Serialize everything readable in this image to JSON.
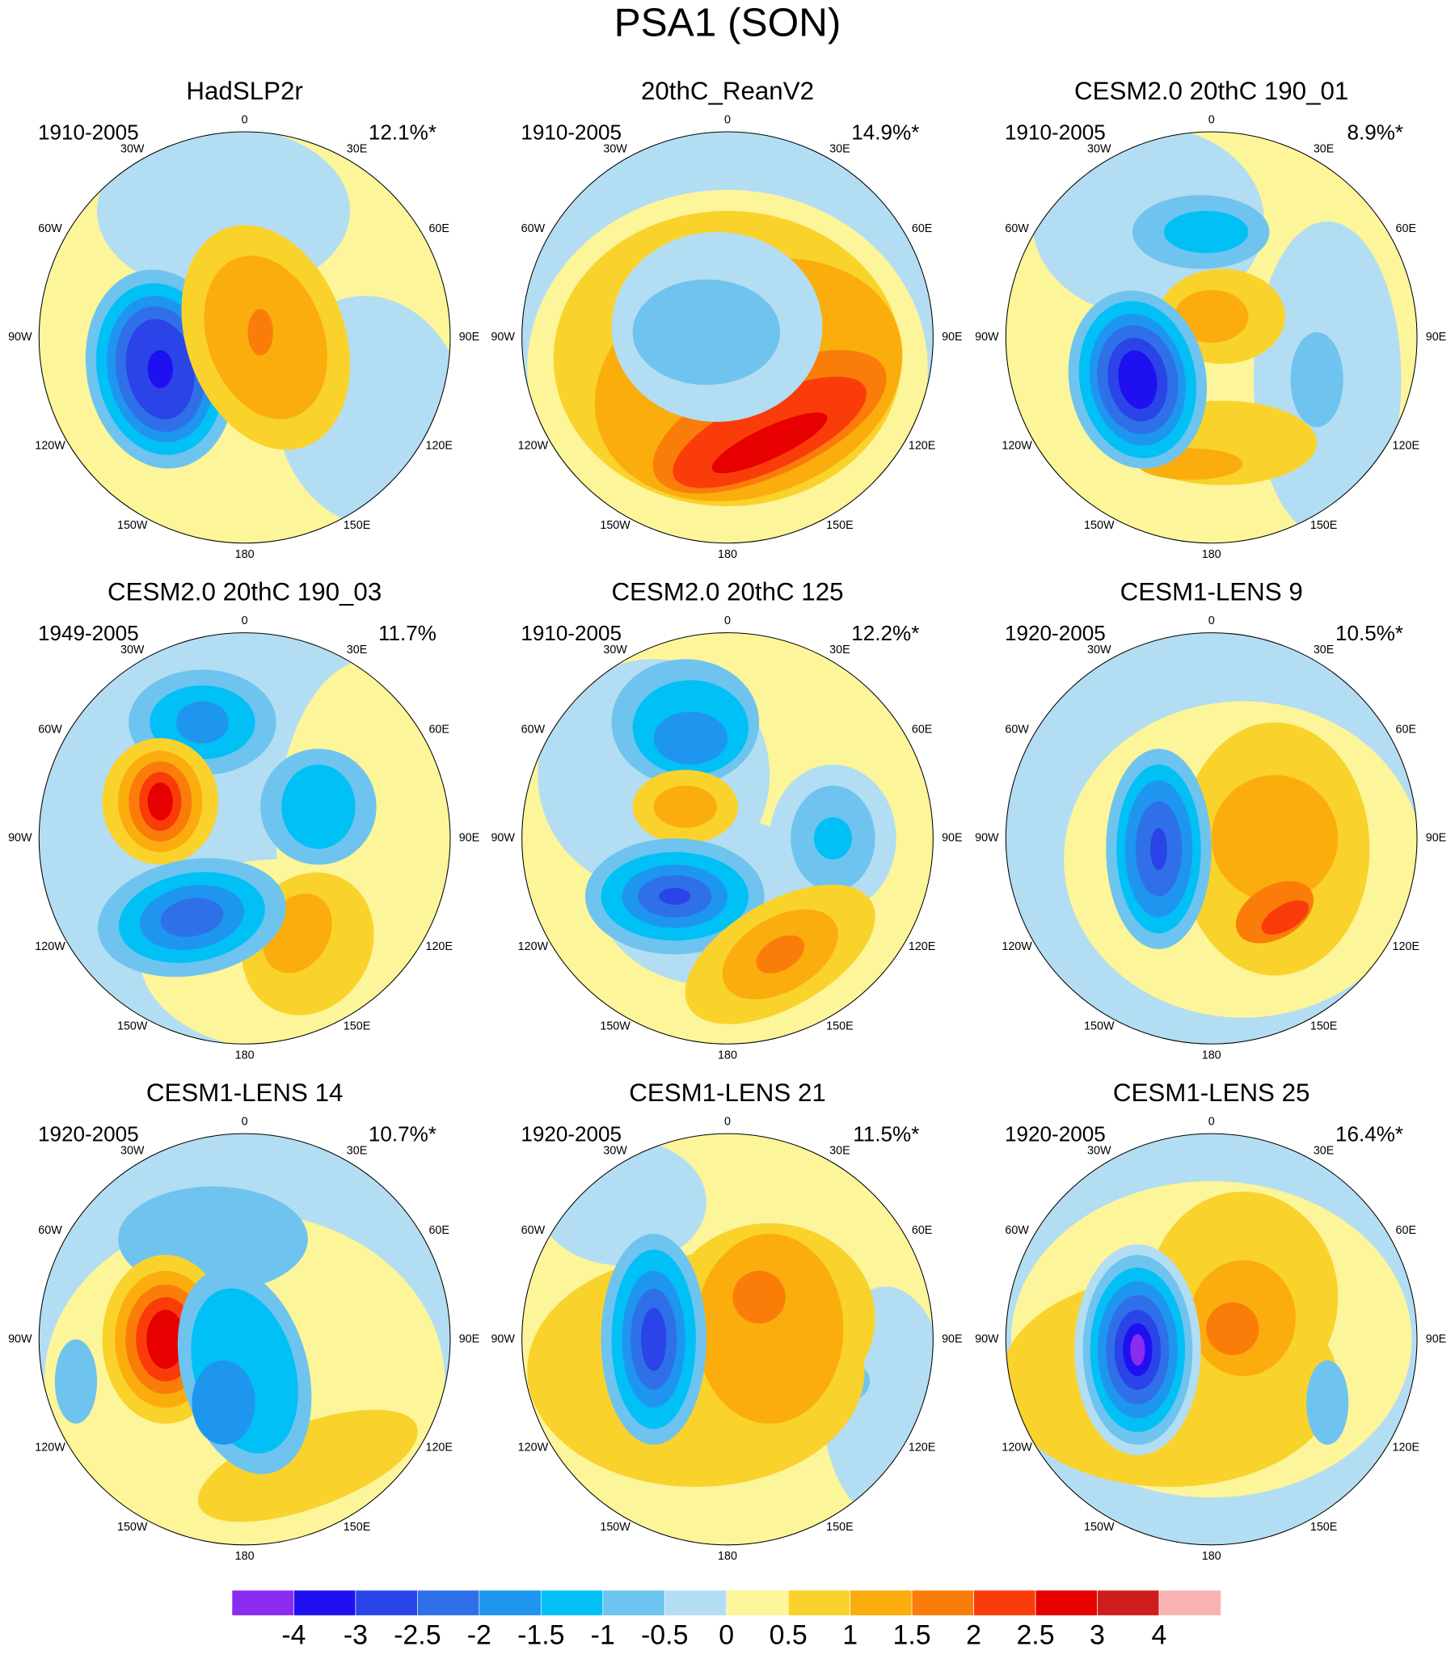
{
  "title": "PSA1 (SON)",
  "lon_labels": [
    "0",
    "30E",
    "60E",
    "90E",
    "120E",
    "150E",
    "180",
    "150W",
    "120W",
    "90W",
    "60W",
    "30W"
  ],
  "panels": [
    {
      "title": "HadSLP2r",
      "period": "1910-2005",
      "pct": "12.1%*"
    },
    {
      "title": "20thC_ReanV2",
      "period": "1910-2005",
      "pct": "14.9%*"
    },
    {
      "title": "CESM2.0 20thC 190_01",
      "period": "1910-2005",
      "pct": "8.9%*"
    },
    {
      "title": "CESM2.0 20thC 190_03",
      "period": "1949-2005",
      "pct": "11.7%"
    },
    {
      "title": "CESM2.0 20thC 125",
      "period": "1910-2005",
      "pct": "12.2%*"
    },
    {
      "title": "CESM1-LENS 9",
      "period": "1920-2005",
      "pct": "10.5%*"
    },
    {
      "title": "CESM1-LENS 14",
      "period": "1920-2005",
      "pct": "10.7%*"
    },
    {
      "title": "CESM1-LENS 21",
      "period": "1920-2005",
      "pct": "11.5%*"
    },
    {
      "title": "CESM1-LENS 25",
      "period": "1920-2005",
      "pct": "16.4%*"
    }
  ],
  "colorbar": {
    "levels": [
      -4,
      -3,
      -2.5,
      -2,
      -1.5,
      -1,
      -0.5,
      0,
      0.5,
      1,
      1.5,
      2,
      2.5,
      3,
      4
    ],
    "colors": [
      "#8b2cf0",
      "#1e10f0",
      "#2a44e8",
      "#2f70e8",
      "#1e96f0",
      "#00c0f5",
      "#6ec4ee",
      "#b3ddf2",
      "#fcf59a",
      "#fad22c",
      "#fbad0d",
      "#fa7d0a",
      "#fa3c0a",
      "#e60000",
      "#cf1c1c",
      "#f9b3b3"
    ]
  }
}
